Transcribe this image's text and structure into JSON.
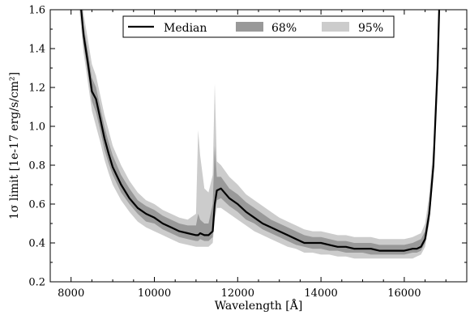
{
  "chart_data": {
    "type": "area",
    "xlabel": "Wavelength [Å]",
    "ylabel": "1σ limit [1e-17 erg/s/cm²]",
    "xlim": [
      7500,
      17500
    ],
    "ylim": [
      0.2,
      1.6
    ],
    "xticks": [
      8000,
      10000,
      12000,
      14000,
      16000
    ],
    "yticks": [
      0.2,
      0.4,
      0.6,
      0.8,
      1.0,
      1.2,
      1.4,
      1.6
    ],
    "xtick_labels": [
      "8000",
      "10000",
      "12000",
      "14000",
      "16000"
    ],
    "ytick_labels": [
      "0.2",
      "0.4",
      "0.6",
      "0.8",
      "1.0",
      "1.2",
      "1.4",
      "1.6"
    ],
    "grid": false,
    "legend_position": "top-center",
    "legend": [
      {
        "key": "median",
        "label": "Median"
      },
      {
        "key": "band68",
        "label": "68%"
      },
      {
        "key": "band95",
        "label": "95%"
      }
    ],
    "colors": {
      "median": "#000000",
      "band68": "#999999",
      "band95": "#cccccc"
    },
    "x": [
      8200,
      8300,
      8400,
      8500,
      8600,
      8700,
      8800,
      8900,
      9000,
      9200,
      9400,
      9600,
      9800,
      10000,
      10200,
      10400,
      10600,
      10800,
      11000,
      11050,
      11100,
      11200,
      11300,
      11400,
      11450,
      11500,
      11600,
      11800,
      12000,
      12200,
      12400,
      12600,
      12800,
      13000,
      13200,
      13400,
      13600,
      13800,
      14000,
      14200,
      14400,
      14600,
      14800,
      15000,
      15200,
      15400,
      15600,
      15800,
      16000,
      16200,
      16300,
      16400,
      16500,
      16600,
      16700,
      16800,
      16850
    ],
    "series": [
      {
        "key": "median",
        "values": [
          1.7,
          1.47,
          1.33,
          1.18,
          1.14,
          1.04,
          0.94,
          0.86,
          0.79,
          0.7,
          0.63,
          0.58,
          0.55,
          0.53,
          0.5,
          0.48,
          0.46,
          0.45,
          0.44,
          0.44,
          0.45,
          0.44,
          0.44,
          0.46,
          0.6,
          0.67,
          0.68,
          0.63,
          0.6,
          0.56,
          0.53,
          0.5,
          0.48,
          0.46,
          0.44,
          0.42,
          0.4,
          0.4,
          0.4,
          0.39,
          0.38,
          0.38,
          0.37,
          0.37,
          0.37,
          0.36,
          0.36,
          0.36,
          0.36,
          0.37,
          0.37,
          0.38,
          0.42,
          0.55,
          0.8,
          1.3,
          1.7
        ]
      }
    ],
    "bands": [
      {
        "key": "band95",
        "lower": [
          1.6,
          1.38,
          1.23,
          1.08,
          1.0,
          0.92,
          0.83,
          0.76,
          0.7,
          0.62,
          0.56,
          0.51,
          0.48,
          0.46,
          0.44,
          0.42,
          0.4,
          0.39,
          0.38,
          0.38,
          0.38,
          0.38,
          0.38,
          0.4,
          0.52,
          0.58,
          0.58,
          0.55,
          0.52,
          0.49,
          0.46,
          0.44,
          0.42,
          0.4,
          0.38,
          0.37,
          0.35,
          0.35,
          0.34,
          0.34,
          0.33,
          0.33,
          0.32,
          0.32,
          0.32,
          0.32,
          0.32,
          0.32,
          0.32,
          0.32,
          0.33,
          0.34,
          0.38,
          0.5,
          0.74,
          1.2,
          1.65
        ],
        "upper": [
          1.75,
          1.58,
          1.45,
          1.32,
          1.26,
          1.16,
          1.06,
          0.98,
          0.9,
          0.8,
          0.72,
          0.66,
          0.62,
          0.6,
          0.57,
          0.55,
          0.53,
          0.52,
          0.55,
          0.98,
          0.85,
          0.68,
          0.66,
          0.75,
          1.22,
          0.82,
          0.8,
          0.74,
          0.7,
          0.65,
          0.62,
          0.59,
          0.56,
          0.53,
          0.51,
          0.49,
          0.47,
          0.46,
          0.46,
          0.45,
          0.44,
          0.44,
          0.43,
          0.43,
          0.43,
          0.42,
          0.42,
          0.42,
          0.42,
          0.43,
          0.44,
          0.45,
          0.5,
          0.65,
          0.9,
          1.45,
          1.75
        ]
      },
      {
        "key": "band68",
        "lower": [
          1.65,
          1.42,
          1.28,
          1.13,
          1.07,
          0.98,
          0.88,
          0.81,
          0.75,
          0.66,
          0.6,
          0.55,
          0.51,
          0.5,
          0.47,
          0.45,
          0.43,
          0.42,
          0.41,
          0.41,
          0.42,
          0.41,
          0.41,
          0.43,
          0.56,
          0.62,
          0.63,
          0.59,
          0.56,
          0.52,
          0.5,
          0.47,
          0.45,
          0.43,
          0.41,
          0.39,
          0.38,
          0.37,
          0.37,
          0.36,
          0.36,
          0.35,
          0.35,
          0.35,
          0.34,
          0.34,
          0.34,
          0.34,
          0.34,
          0.35,
          0.35,
          0.36,
          0.4,
          0.52,
          0.77,
          1.25,
          1.68
        ],
        "upper": [
          1.72,
          1.52,
          1.39,
          1.25,
          1.2,
          1.1,
          1.0,
          0.92,
          0.85,
          0.75,
          0.68,
          0.62,
          0.59,
          0.57,
          0.54,
          0.52,
          0.5,
          0.49,
          0.49,
          0.55,
          0.52,
          0.5,
          0.5,
          0.6,
          0.9,
          0.74,
          0.74,
          0.68,
          0.65,
          0.61,
          0.58,
          0.55,
          0.52,
          0.5,
          0.48,
          0.46,
          0.44,
          0.43,
          0.43,
          0.42,
          0.41,
          0.41,
          0.4,
          0.4,
          0.4,
          0.39,
          0.39,
          0.39,
          0.39,
          0.4,
          0.41,
          0.42,
          0.46,
          0.6,
          0.85,
          1.38,
          1.72
        ]
      }
    ]
  }
}
